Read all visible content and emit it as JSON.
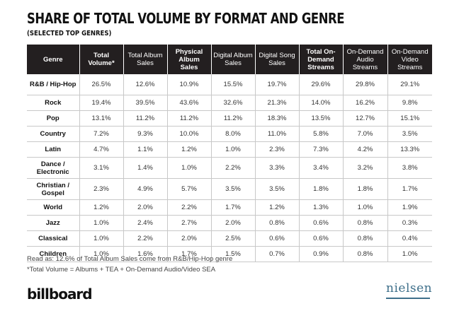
{
  "title": "SHARE OF TOTAL VOLUME BY FORMAT AND GENRE",
  "subtitle": "(SELECTED TOP GENRES)",
  "chart_data": {
    "type": "table",
    "columns": [
      {
        "label": "Genre",
        "bold": true
      },
      {
        "label": "Total Volume*",
        "bold": true
      },
      {
        "label": "Total Album Sales",
        "bold": false
      },
      {
        "label": "Physical Album Sales",
        "bold": true
      },
      {
        "label": "Digital Album Sales",
        "bold": false
      },
      {
        "label": "Digital Song Sales",
        "bold": false
      },
      {
        "label": "Total On-Demand Streams",
        "bold": true
      },
      {
        "label": "On-Demand Audio Streams",
        "bold": false
      },
      {
        "label": "On-Demand Video Streams",
        "bold": false
      }
    ],
    "rows": [
      {
        "genre": "R&B / Hip-Hop",
        "tall": true,
        "values": [
          "26.5%",
          "12.6%",
          "10.9%",
          "15.5%",
          "19.7%",
          "29.6%",
          "29.8%",
          "29.1%"
        ]
      },
      {
        "genre": "Rock",
        "tall": false,
        "values": [
          "19.4%",
          "39.5%",
          "43.6%",
          "32.6%",
          "21.3%",
          "14.0%",
          "16.2%",
          "9.8%"
        ]
      },
      {
        "genre": "Pop",
        "tall": false,
        "values": [
          "13.1%",
          "11.2%",
          "11.2%",
          "11.2%",
          "18.3%",
          "13.5%",
          "12.7%",
          "15.1%"
        ]
      },
      {
        "genre": "Country",
        "tall": false,
        "values": [
          "7.2%",
          "9.3%",
          "10.0%",
          "8.0%",
          "11.0%",
          "5.8%",
          "7.0%",
          "3.5%"
        ]
      },
      {
        "genre": "Latin",
        "tall": false,
        "values": [
          "4.7%",
          "1.1%",
          "1.2%",
          "1.0%",
          "2.3%",
          "7.3%",
          "4.2%",
          "13.3%"
        ]
      },
      {
        "genre": "Dance / Electronic",
        "tall": true,
        "values": [
          "3.1%",
          "1.4%",
          "1.0%",
          "2.2%",
          "3.3%",
          "3.4%",
          "3.2%",
          "3.8%"
        ]
      },
      {
        "genre": "Christian / Gospel",
        "tall": true,
        "values": [
          "2.3%",
          "4.9%",
          "5.7%",
          "3.5%",
          "3.5%",
          "1.8%",
          "1.8%",
          "1.7%"
        ]
      },
      {
        "genre": "World",
        "tall": false,
        "values": [
          "1.2%",
          "2.0%",
          "2.2%",
          "1.7%",
          "1.2%",
          "1.3%",
          "1.0%",
          "1.9%"
        ]
      },
      {
        "genre": "Jazz",
        "tall": false,
        "values": [
          "1.0%",
          "2.4%",
          "2.7%",
          "2.0%",
          "0.8%",
          "0.6%",
          "0.8%",
          "0.3%"
        ]
      },
      {
        "genre": "Classical",
        "tall": false,
        "values": [
          "1.0%",
          "2.2%",
          "2.0%",
          "2.5%",
          "0.6%",
          "0.6%",
          "0.8%",
          "0.4%"
        ]
      },
      {
        "genre": "Children",
        "tall": false,
        "values": [
          "1.0%",
          "1.6%",
          "1.7%",
          "1.5%",
          "0.7%",
          "0.9%",
          "0.8%",
          "1.0%"
        ]
      }
    ]
  },
  "notes": {
    "read_as": "Read as: 12.6% of Total Album Sales come from R&B/Hip-Hop genre",
    "definition": "*Total Volume = Albums + TEA + On-Demand Audio/Video SEA"
  },
  "logos": {
    "left": "billboard",
    "right": "nielsen"
  },
  "colors": {
    "header_bg": "#231f20",
    "header_text": "#ffffff",
    "nielsen_blue": "#3e6f8a"
  }
}
